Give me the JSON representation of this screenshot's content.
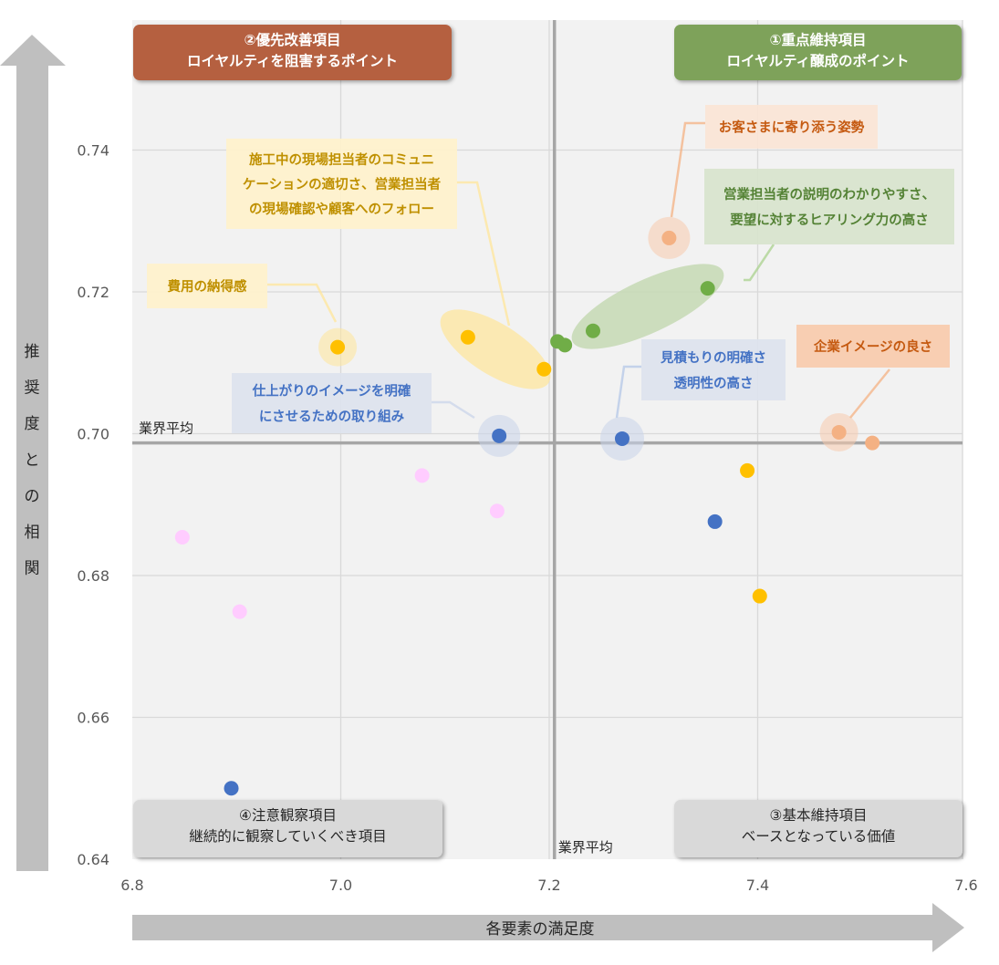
{
  "colors": {
    "plot_bg": "#f2f2f2",
    "grid": "#d9d9d9",
    "avg_line": "#a6a6a6",
    "arrow": "#bfbfbf",
    "orange": "#f4b183",
    "orange_dark": "#c55a11",
    "green": "#70ad47",
    "green_light": "#a9d18e",
    "yellow": "#ffc000",
    "yellow_text": "#bf9000",
    "blue": "#4472c4",
    "pink": "#ffccff",
    "quad1": "#7ea25a",
    "quad2": "#b5603f",
    "quad_gray": "#d9d9d9"
  },
  "chart_data": {
    "type": "scatter",
    "xlabel": "各要素の満足度",
    "ylabel": "推奨度との相関",
    "xlim": [
      6.8,
      7.6
    ],
    "ylim": [
      0.64,
      0.76
    ],
    "xticks": [
      "6.8",
      "7.0",
      "7.2",
      "7.4",
      "7.6"
    ],
    "yticks": [
      "0.64",
      "0.66",
      "0.68",
      "0.70",
      "0.72",
      "0.74"
    ],
    "ytick_values": [
      0.64,
      0.66,
      0.68,
      0.7,
      0.72,
      0.74
    ],
    "xtick_values": [
      6.8,
      7.0,
      7.2,
      7.4,
      7.6
    ],
    "grid": true,
    "industry_average": {
      "x": 7.205,
      "y": 0.6987,
      "x_label": "業界平均",
      "y_label": "業界平均"
    },
    "quadrants": [
      {
        "id": "q1",
        "lines": [
          "①重点維持項目",
          "ロイヤルティ醸成のポイント"
        ]
      },
      {
        "id": "q2",
        "lines": [
          "②優先改善項目",
          "ロイヤルティを阻害するポイント"
        ]
      },
      {
        "id": "q3",
        "lines": [
          "③基本維持項目",
          "ベースとなっている価値"
        ]
      },
      {
        "id": "q4",
        "lines": [
          "④注意観察項目",
          "継続的に観察していくべき項目"
        ]
      }
    ],
    "series": [
      {
        "color_key": "orange",
        "points": [
          [
            7.315,
            0.7276
          ],
          [
            7.478,
            0.7002
          ],
          [
            7.51,
            0.6987
          ]
        ]
      },
      {
        "color_key": "green",
        "points": [
          [
            7.208,
            0.713
          ],
          [
            7.215,
            0.7125
          ],
          [
            7.242,
            0.7145
          ],
          [
            7.352,
            0.7205
          ]
        ]
      },
      {
        "color_key": "yellow",
        "points": [
          [
            6.997,
            0.7122
          ],
          [
            7.122,
            0.7136
          ],
          [
            7.195,
            0.7091
          ],
          [
            7.39,
            0.6948
          ],
          [
            7.402,
            0.6771
          ]
        ]
      },
      {
        "color_key": "blue",
        "points": [
          [
            7.152,
            0.6997
          ],
          [
            7.27,
            0.6993
          ],
          [
            7.359,
            0.6876
          ],
          [
            6.895,
            0.65
          ]
        ]
      },
      {
        "color_key": "pink",
        "points": [
          [
            6.848,
            0.6854
          ],
          [
            6.903,
            0.6749
          ],
          [
            7.078,
            0.6941
          ],
          [
            7.15,
            0.6891
          ]
        ]
      }
    ],
    "callouts": [
      {
        "id": "c1",
        "lines": [
          "お客さまに寄り添う姿勢"
        ],
        "color_key": "orange"
      },
      {
        "id": "c2",
        "lines": [
          "営業担当者の説明のわかりやすさ、",
          "要望に対するヒアリング力の高さ"
        ],
        "color_key": "green"
      },
      {
        "id": "c3",
        "lines": [
          "企業イメージの良さ"
        ],
        "color_key": "orange"
      },
      {
        "id": "c4",
        "lines": [
          "見積もりの明確さ",
          "透明性の高さ"
        ],
        "color_key": "blue"
      },
      {
        "id": "c5",
        "lines": [
          "施工中の現場担当者のコミュニ",
          "ケーションの適切さ、営業担当者",
          "の現場確認や顧客へのフォロー"
        ],
        "color_key": "yellow"
      },
      {
        "id": "c6",
        "lines": [
          "費用の納得感"
        ],
        "color_key": "yellow"
      },
      {
        "id": "c7",
        "lines": [
          "仕上がりのイメージを明確",
          "にさせるための取り組み"
        ],
        "color_key": "blue"
      }
    ]
  }
}
